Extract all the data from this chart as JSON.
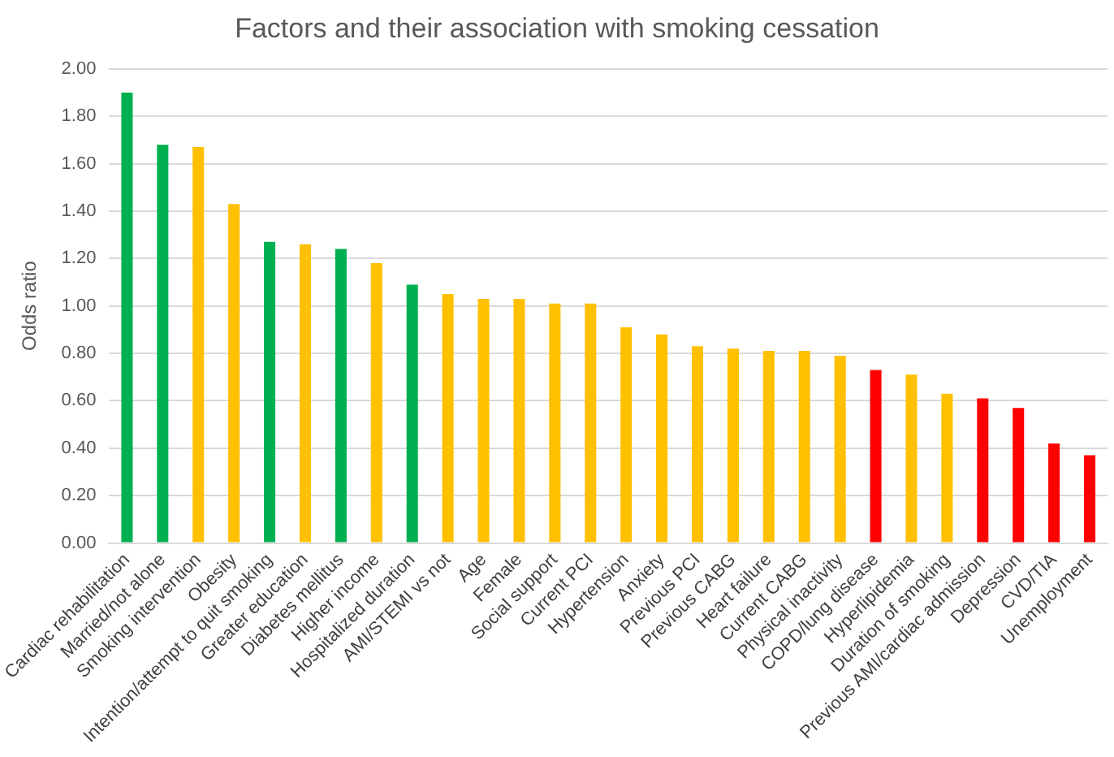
{
  "chart_data": {
    "type": "bar",
    "title": "Factors and their association with smoking cessation",
    "ylabel": "Odds ratio",
    "categories": [
      "Cardiac rehabilitation",
      "Married/not alone",
      "Smoking intervention",
      "Obesity",
      "Intention/attempt to quit smoking",
      "Greater education",
      "Diabetes mellitus",
      "Higher income",
      "Hospitalized duration",
      "AMI/STEMI vs not",
      "Age",
      "Female",
      "Social support",
      "Current PCI",
      "Hypertension",
      "Anxiety",
      "Previous PCI",
      "Previous CABG",
      "Heart failure",
      "Current CABG",
      "Physical inactivity",
      "COPD/lung disease",
      "Hyperlipidemia",
      "Duration of smoking",
      "Previous AMI/cardiac admission",
      "Depression",
      "CVD/TIA",
      "Unemployment"
    ],
    "values": [
      1.9,
      1.68,
      1.67,
      1.43,
      1.27,
      1.26,
      1.24,
      1.18,
      1.09,
      1.05,
      1.03,
      1.03,
      1.01,
      1.01,
      0.91,
      0.88,
      0.83,
      0.82,
      0.81,
      0.81,
      0.79,
      0.73,
      0.71,
      0.63,
      0.61,
      0.57,
      0.42,
      0.37
    ],
    "colors": [
      "#00b050",
      "#00b050",
      "#ffc000",
      "#ffc000",
      "#00b050",
      "#ffc000",
      "#00b050",
      "#ffc000",
      "#00b050",
      "#ffc000",
      "#ffc000",
      "#ffc000",
      "#ffc000",
      "#ffc000",
      "#ffc000",
      "#ffc000",
      "#ffc000",
      "#ffc000",
      "#ffc000",
      "#ffc000",
      "#ffc000",
      "#ff0000",
      "#ffc000",
      "#ffc000",
      "#ff0000",
      "#ff0000",
      "#ff0000",
      "#ff0000"
    ],
    "ylim": [
      0,
      2
    ],
    "yticks": [
      {
        "value": 0,
        "label": "0.00"
      },
      {
        "value": 0.2,
        "label": "0.20"
      },
      {
        "value": 0.4,
        "label": "0.40"
      },
      {
        "value": 0.6,
        "label": "0.60"
      },
      {
        "value": 0.8,
        "label": "0.80"
      },
      {
        "value": 1,
        "label": "1.00"
      },
      {
        "value": 1.2,
        "label": "1.20"
      },
      {
        "value": 1.4,
        "label": "1.40"
      },
      {
        "value": 1.6,
        "label": "1.60"
      },
      {
        "value": 1.8,
        "label": "1.80"
      },
      {
        "value": 2,
        "label": "2.00"
      }
    ],
    "grid": "y",
    "legend": false
  }
}
